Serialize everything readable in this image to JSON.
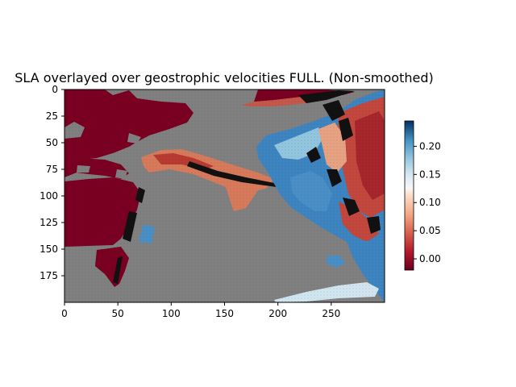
{
  "chart_data": {
    "type": "heatmap",
    "title": "SLA overlayed over geostrophic velocities FULL. (Non-smoothed)",
    "xlabel": "",
    "ylabel": "",
    "xlim": [
      0,
      300
    ],
    "ylim": [
      200,
      0
    ],
    "x_ticks": [
      0,
      50,
      100,
      150,
      200,
      250
    ],
    "y_ticks": [
      0,
      25,
      50,
      75,
      100,
      125,
      150,
      175
    ],
    "x_tick_labels": [
      "0",
      "50",
      "100",
      "150",
      "200",
      "250"
    ],
    "y_tick_labels": [
      "0",
      "25",
      "50",
      "75",
      "100",
      "125",
      "150",
      "175"
    ],
    "colormap": "RdBu",
    "land_color": "#808080",
    "colorbar": {
      "range": [
        -0.02,
        0.245
      ],
      "ticks": [
        0.0,
        0.05,
        0.1,
        0.15,
        0.2
      ],
      "tick_labels": [
        "0.00",
        "0.05",
        "0.10",
        "0.15",
        "0.20"
      ]
    },
    "grid": false
  }
}
